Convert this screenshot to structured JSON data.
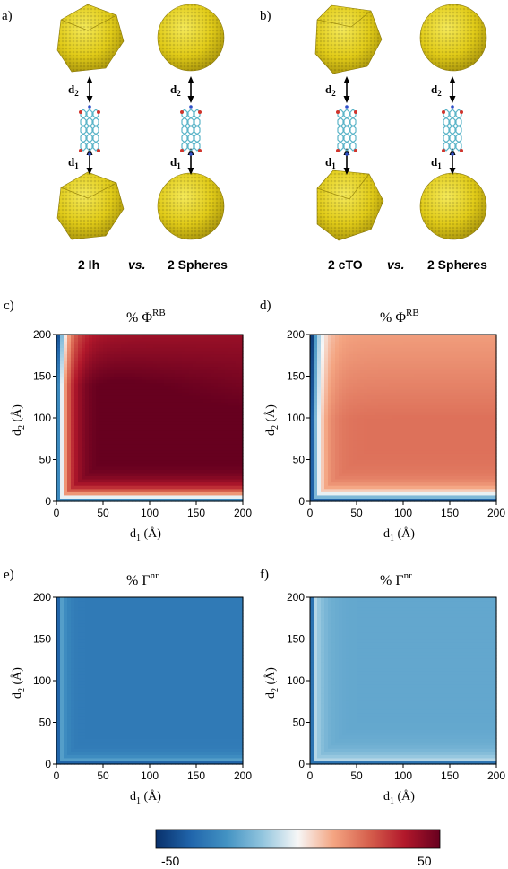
{
  "top": {
    "panel_a": {
      "label": "a)",
      "left_caption": "2 Ih",
      "vs": "vs.",
      "right_caption": "2 Spheres"
    },
    "panel_b": {
      "label": "b)",
      "left_caption": "2 cTO",
      "vs": "vs.",
      "right_caption": "2 Spheres"
    },
    "d1": "d",
    "d2": "d",
    "d1_sub": "1",
    "d2_sub": "2",
    "colors": {
      "gold": "#e6d219",
      "gold_dark": "#b8a50f",
      "molecule_c": "#5ab4c8",
      "molecule_o": "#d0342c",
      "molecule_n": "#3050c8"
    }
  },
  "chart_data": [
    {
      "panel": "c)",
      "type": "heatmap",
      "title_main": "% Φ",
      "title_sup": "RB",
      "xlabel": "d",
      "xlabel_sub": "1",
      "xlabel_unit": " (Å)",
      "ylabel": "d",
      "ylabel_sub": "2",
      "ylabel_unit": " (Å)",
      "xlim": [
        0,
        200
      ],
      "ylim": [
        0,
        200
      ],
      "xticks": [
        0,
        50,
        100,
        150,
        200
      ],
      "yticks": [
        0,
        50,
        100,
        150,
        200
      ],
      "field": "phi_strong"
    },
    {
      "panel": "d)",
      "type": "heatmap",
      "title_main": "% Φ",
      "title_sup": "RB",
      "xlabel": "d",
      "xlabel_sub": "1",
      "xlabel_unit": " (Å)",
      "ylabel": "d",
      "ylabel_sub": "2",
      "ylabel_unit": " (Å)",
      "xlim": [
        0,
        200
      ],
      "ylim": [
        0,
        200
      ],
      "xticks": [
        0,
        50,
        100,
        150,
        200
      ],
      "yticks": [
        0,
        50,
        100,
        150,
        200
      ],
      "field": "phi_weak"
    },
    {
      "panel": "e)",
      "type": "heatmap",
      "title_main": "% Γ",
      "title_sup": "nr",
      "xlabel": "d",
      "xlabel_sub": "1",
      "xlabel_unit": " (Å)",
      "ylabel": "d",
      "ylabel_sub": "2",
      "ylabel_unit": " (Å)",
      "xlim": [
        0,
        200
      ],
      "ylim": [
        0,
        200
      ],
      "xticks": [
        0,
        50,
        100,
        150,
        200
      ],
      "yticks": [
        0,
        50,
        100,
        150,
        200
      ],
      "field": "gamma_strong"
    },
    {
      "panel": "f)",
      "type": "heatmap",
      "title_main": "% Γ",
      "title_sup": "nr",
      "xlabel": "d",
      "xlabel_sub": "1",
      "xlabel_unit": " (Å)",
      "ylabel": "d",
      "ylabel_sub": "2",
      "ylabel_unit": " (Å)",
      "xlim": [
        0,
        200
      ],
      "ylim": [
        0,
        200
      ],
      "xticks": [
        0,
        50,
        100,
        150,
        200
      ],
      "yticks": [
        0,
        50,
        100,
        150,
        200
      ],
      "field": "gamma_weak"
    }
  ],
  "colorbar": {
    "min_label": "-50",
    "max_label": "50",
    "range": [
      -50,
      50
    ],
    "colormap": "RdBu_r",
    "stops": [
      "#08306b",
      "#2166ac",
      "#4393c3",
      "#92c5de",
      "#f7f7f7",
      "#f4a582",
      "#d6604d",
      "#b2182b",
      "#67001f"
    ]
  }
}
